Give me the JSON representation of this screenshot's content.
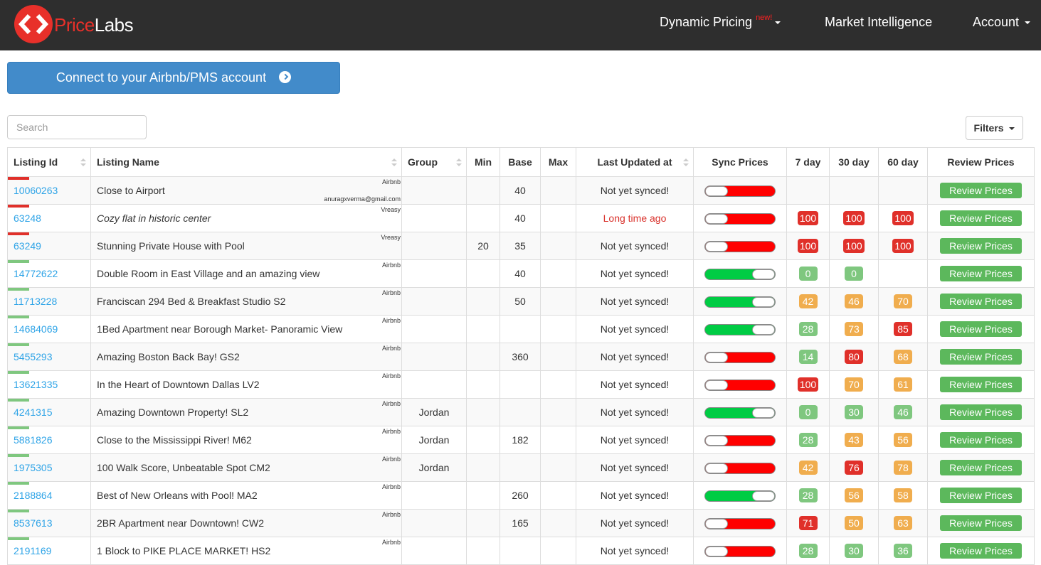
{
  "nav": {
    "logo_a": "Price",
    "logo_b": "Labs",
    "items": [
      {
        "label": "Dynamic Pricing",
        "badge": "new!"
      },
      {
        "label": "Market Intelligence"
      },
      {
        "label": "Account"
      }
    ]
  },
  "connect_button": "Connect to your Airbnb/PMS account",
  "search_placeholder": "Search",
  "filters_button": "Filters",
  "table": {
    "headers": [
      "Listing Id",
      "Listing Name",
      "Group",
      "Min",
      "Base",
      "Max",
      "Last Updated at",
      "Sync Prices",
      "7 day",
      "30 day",
      "60 day",
      "Review Prices"
    ],
    "review_button": "Review Prices",
    "rows": [
      {
        "id": "10060263",
        "name": "Close to Airport",
        "source": "Airbnb",
        "email": "anuragxverma@gmail.com",
        "group": null,
        "min": null,
        "base": 40,
        "max": null,
        "last_updated": "Not yet synced!",
        "sync": false,
        "flag": "red",
        "day7": null,
        "day30": null,
        "day60": null
      },
      {
        "id": "63248",
        "name": "Cozy flat in historic center",
        "name_italic": true,
        "source": "Vreasy",
        "group": null,
        "min": null,
        "base": 40,
        "max": null,
        "last_updated": "Long time ago",
        "last_updated_alert": true,
        "sync": false,
        "flag": "red",
        "day7": {
          "value": 100,
          "color": "red"
        },
        "day30": {
          "value": 100,
          "color": "red"
        },
        "day60": {
          "value": 100,
          "color": "red"
        }
      },
      {
        "id": "63249",
        "name": "Stunning Private House with Pool",
        "source": "Vreasy",
        "group": null,
        "min": 20,
        "base": 35,
        "max": null,
        "last_updated": "Not yet synced!",
        "sync": false,
        "flag": "red",
        "day7": {
          "value": 100,
          "color": "red"
        },
        "day30": {
          "value": 100,
          "color": "red"
        },
        "day60": {
          "value": 100,
          "color": "red"
        }
      },
      {
        "id": "14772622",
        "name": "Double Room in East Village and an amazing view",
        "source": "Airbnb",
        "group": null,
        "min": null,
        "base": 40,
        "max": null,
        "last_updated": "Not yet synced!",
        "sync": true,
        "flag": "green",
        "day7": {
          "value": 0,
          "color": "green"
        },
        "day30": {
          "value": 0,
          "color": "green"
        },
        "day60": null
      },
      {
        "id": "11713228",
        "name": "Franciscan 294 Bed & Breakfast Studio S2",
        "source": "Airbnb",
        "group": null,
        "min": null,
        "base": 50,
        "max": null,
        "last_updated": "Not yet synced!",
        "sync": true,
        "flag": "green",
        "day7": {
          "value": 42,
          "color": "orange"
        },
        "day30": {
          "value": 46,
          "color": "orange"
        },
        "day60": {
          "value": 70,
          "color": "orange"
        }
      },
      {
        "id": "14684069",
        "name": "1Bed Apartment near Borough Market- Panoramic View",
        "source": "Airbnb",
        "group": null,
        "min": null,
        "base": null,
        "max": null,
        "last_updated": "Not yet synced!",
        "sync": true,
        "flag": "green",
        "day7": {
          "value": 28,
          "color": "green"
        },
        "day30": {
          "value": 73,
          "color": "orange"
        },
        "day60": {
          "value": 85,
          "color": "red"
        }
      },
      {
        "id": "5455293",
        "name": "Amazing Boston Back Bay! GS2",
        "source": "Airbnb",
        "group": null,
        "min": null,
        "base": 360,
        "max": null,
        "last_updated": "Not yet synced!",
        "sync": false,
        "flag": "green",
        "day7": {
          "value": 14,
          "color": "green"
        },
        "day30": {
          "value": 80,
          "color": "red"
        },
        "day60": {
          "value": 68,
          "color": "orange"
        }
      },
      {
        "id": "13621335",
        "name": "In the Heart of Downtown Dallas LV2",
        "source": "Airbnb",
        "group": null,
        "min": null,
        "base": null,
        "max": null,
        "last_updated": "Not yet synced!",
        "sync": false,
        "flag": "green",
        "day7": {
          "value": 100,
          "color": "red"
        },
        "day30": {
          "value": 70,
          "color": "orange"
        },
        "day60": {
          "value": 61,
          "color": "orange"
        }
      },
      {
        "id": "4241315",
        "name": "Amazing Downtown Property! SL2",
        "source": "Airbnb",
        "group": "Jordan",
        "min": null,
        "base": null,
        "max": null,
        "last_updated": "Not yet synced!",
        "sync": true,
        "flag": "green",
        "day7": {
          "value": 0,
          "color": "green"
        },
        "day30": {
          "value": 30,
          "color": "green"
        },
        "day60": {
          "value": 46,
          "color": "green"
        }
      },
      {
        "id": "5881826",
        "name": "Close to the Mississippi River! M62",
        "source": "Airbnb",
        "group": "Jordan",
        "min": null,
        "base": 182,
        "max": null,
        "last_updated": "Not yet synced!",
        "sync": false,
        "flag": "green",
        "day7": {
          "value": 28,
          "color": "green"
        },
        "day30": {
          "value": 43,
          "color": "orange"
        },
        "day60": {
          "value": 56,
          "color": "orange"
        }
      },
      {
        "id": "1975305",
        "name": "100 Walk Score, Unbeatable Spot CM2",
        "source": "Airbnb",
        "group": "Jordan",
        "min": null,
        "base": null,
        "max": null,
        "last_updated": "Not yet synced!",
        "sync": false,
        "flag": "green",
        "day7": {
          "value": 42,
          "color": "orange"
        },
        "day30": {
          "value": 76,
          "color": "red"
        },
        "day60": {
          "value": 78,
          "color": "orange"
        }
      },
      {
        "id": "2188864",
        "name": "Best of New Orleans with Pool! MA2",
        "source": "Airbnb",
        "group": null,
        "min": null,
        "base": 260,
        "max": null,
        "last_updated": "Not yet synced!",
        "sync": true,
        "flag": "green",
        "day7": {
          "value": 28,
          "color": "green"
        },
        "day30": {
          "value": 56,
          "color": "orange"
        },
        "day60": {
          "value": 58,
          "color": "orange"
        }
      },
      {
        "id": "8537613",
        "name": "2BR Apartment near Downtown! CW2",
        "source": "Airbnb",
        "group": null,
        "min": null,
        "base": 165,
        "max": null,
        "last_updated": "Not yet synced!",
        "sync": false,
        "flag": "green",
        "day7": {
          "value": 71,
          "color": "red"
        },
        "day30": {
          "value": 50,
          "color": "orange"
        },
        "day60": {
          "value": 63,
          "color": "orange"
        }
      },
      {
        "id": "2191169",
        "name": "1 Block to PIKE PLACE MARKET! HS2",
        "source": "Airbnb",
        "group": null,
        "min": null,
        "base": null,
        "max": null,
        "last_updated": "Not yet synced!",
        "sync": false,
        "flag": "green",
        "day7": {
          "value": 28,
          "color": "green"
        },
        "day30": {
          "value": 30,
          "color": "green"
        },
        "day60": {
          "value": 36,
          "color": "green"
        }
      }
    ]
  }
}
